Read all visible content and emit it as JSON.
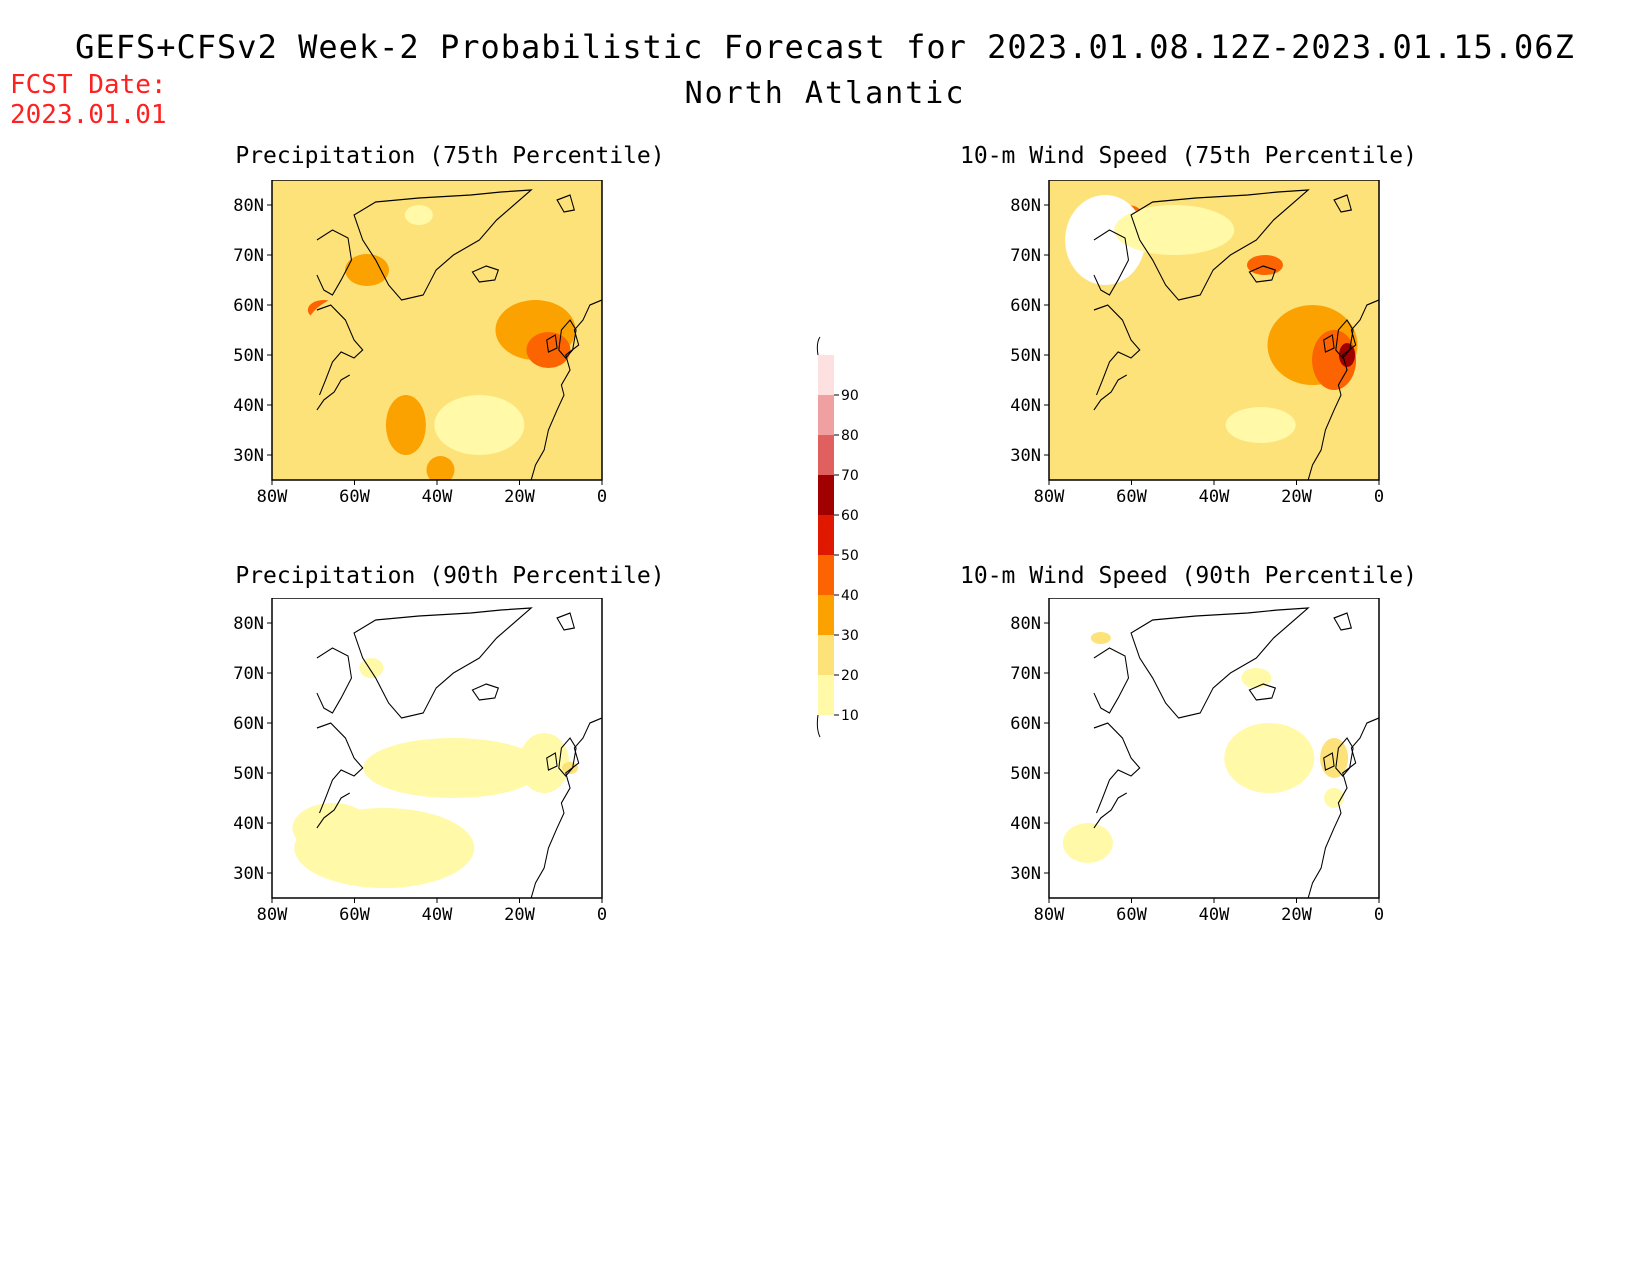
{
  "header": {
    "title": "GEFS+CFSv2 Week-2 Probabilistic Forecast for 2023.01.08.12Z-2023.01.15.06Z",
    "region": "North Atlantic",
    "fcst_label": "FCST Date:",
    "fcst_date": "2023.01.01"
  },
  "axes": {
    "lat_labels": [
      "80N",
      "70N",
      "60N",
      "50N",
      "40N",
      "30N"
    ],
    "lon_labels": [
      "80W",
      "60W",
      "40W",
      "20W",
      "0"
    ]
  },
  "panels": [
    {
      "id": "precip-75",
      "title": "Precipitation (75th Percentile)",
      "background_level": "20"
    },
    {
      "id": "wind-75",
      "title": "10-m Wind Speed (75th Percentile)",
      "background_level": "20"
    },
    {
      "id": "precip-90",
      "title": "Precipitation (90th Percentile)",
      "background_level": "0"
    },
    {
      "id": "wind-90",
      "title": "10-m Wind Speed (90th Percentile)",
      "background_level": "0"
    }
  ],
  "legend": {
    "levels": [
      "10",
      "20",
      "30",
      "40",
      "50",
      "60",
      "70",
      "80",
      "90"
    ],
    "colors": [
      "#fff9a8",
      "#fde27a",
      "#fba200",
      "#fb6400",
      "#e01800",
      "#a00000",
      "#e06060",
      "#f0a0a0",
      "#fde0e0"
    ]
  }
}
